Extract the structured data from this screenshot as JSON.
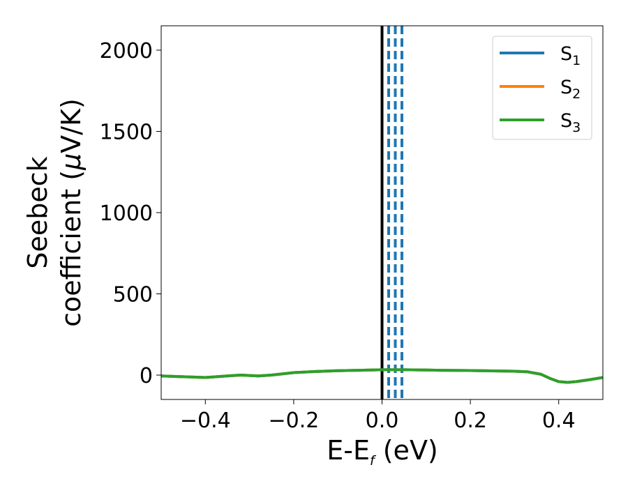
{
  "chart_data": {
    "type": "line",
    "xlabel": {
      "main": "E-E",
      "sub": "f",
      "tail": " (eV)"
    },
    "ylabel": {
      "line1": "Seebeck",
      "line2_pre": "coefficient  (",
      "mu": "μ",
      "line2_post": "V/K)"
    },
    "xlim": [
      -0.5,
      0.5
    ],
    "ylim": [
      -150,
      2150
    ],
    "xticks": [
      -0.4,
      -0.2,
      0.0,
      0.2,
      0.4
    ],
    "xtick_labels": [
      "−0.4",
      "−0.2",
      "0.0",
      "0.2",
      "0.4"
    ],
    "yticks": [
      0,
      500,
      1000,
      1500,
      2000
    ],
    "ytick_labels": [
      "0",
      "500",
      "1000",
      "1500",
      "2000"
    ],
    "grid": false,
    "legend_placement": "upper right",
    "series": [
      {
        "name": "S",
        "sub": "1",
        "color": "#1f77b4",
        "x": [
          -0.5,
          -0.45,
          -0.4,
          -0.35,
          -0.32,
          -0.28,
          -0.25,
          -0.2,
          -0.15,
          -0.1,
          -0.05,
          0.0,
          0.05,
          0.1,
          0.15,
          0.2,
          0.25,
          0.3,
          0.33,
          0.36,
          0.38,
          0.4,
          0.42,
          0.44,
          0.47,
          0.5
        ],
        "y": [
          -5,
          -10,
          -15,
          -5,
          0,
          -5,
          0,
          15,
          22,
          27,
          30,
          33,
          33,
          31,
          29,
          28,
          26,
          24,
          20,
          5,
          -20,
          -40,
          -45,
          -40,
          -28,
          -15
        ]
      },
      {
        "name": "S",
        "sub": "2",
        "color": "#ff7f0e",
        "x": [
          -0.5,
          -0.45,
          -0.4,
          -0.35,
          -0.32,
          -0.28,
          -0.25,
          -0.2,
          -0.15,
          -0.1,
          -0.05,
          0.0,
          0.05,
          0.1,
          0.15,
          0.2,
          0.25,
          0.3,
          0.33,
          0.36,
          0.38,
          0.4,
          0.42,
          0.44,
          0.47,
          0.5
        ],
        "y": [
          -5,
          -10,
          -15,
          -5,
          0,
          -5,
          0,
          15,
          22,
          27,
          30,
          33,
          33,
          31,
          29,
          28,
          26,
          24,
          20,
          5,
          -20,
          -40,
          -45,
          -40,
          -28,
          -15
        ]
      },
      {
        "name": "S",
        "sub": "3",
        "color": "#2ca02c",
        "x": [
          -0.5,
          -0.45,
          -0.4,
          -0.35,
          -0.32,
          -0.28,
          -0.25,
          -0.2,
          -0.15,
          -0.1,
          -0.05,
          0.0,
          0.05,
          0.1,
          0.15,
          0.2,
          0.25,
          0.3,
          0.33,
          0.36,
          0.38,
          0.4,
          0.42,
          0.44,
          0.47,
          0.5
        ],
        "y": [
          -5,
          -10,
          -15,
          -5,
          0,
          -5,
          0,
          15,
          22,
          27,
          30,
          33,
          33,
          31,
          29,
          28,
          26,
          24,
          20,
          5,
          -20,
          -40,
          -45,
          -40,
          -28,
          -15
        ]
      }
    ],
    "vlines": [
      {
        "x": 0.0,
        "color": "#000000",
        "style": "solid"
      },
      {
        "x": 0.015,
        "color": "#1f77b4",
        "style": "dashed"
      },
      {
        "x": 0.03,
        "color": "#1f77b4",
        "style": "dashed"
      },
      {
        "x": 0.045,
        "color": "#1f77b4",
        "style": "dashed"
      }
    ]
  }
}
